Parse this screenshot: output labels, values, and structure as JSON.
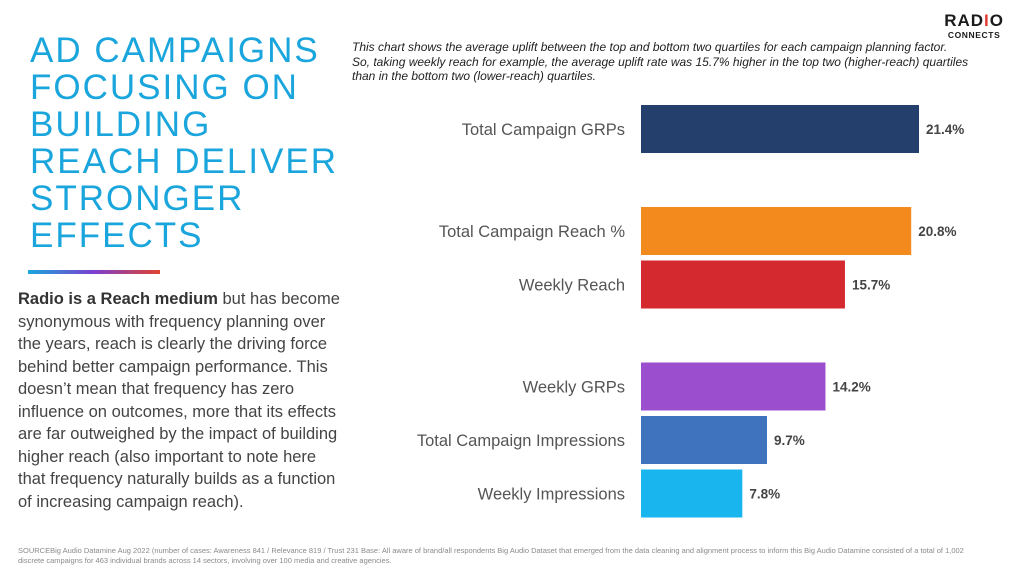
{
  "logo": {
    "line1_a": "RAD",
    "line1_b": "I",
    "line1_c": "O",
    "line2": "CONNECTS"
  },
  "headline": "AD CAMPAIGNS FOCUSING ON BUILDING REACH DELIVER STRONGER EFFECTS",
  "body": {
    "lead": "Radio is a Reach medium",
    "rest": " but has become synonymous with frequency planning over the years, reach is clearly the driving force behind better campaign performance. This doesn’t mean that frequency has zero influence on outcomes, more that its effects are far outweighed by the impact of building higher reach (also important to note here that frequency naturally builds as a function of increasing campaign reach)."
  },
  "note": {
    "line1": "This chart shows the average uplift between the top and bottom two quartiles for each campaign planning factor.",
    "line2": "So, taking weekly reach for example, the average uplift rate was 15.7% higher in the top two (higher-reach) quartiles than in the bottom two (lower-reach) quartiles."
  },
  "chart_data": {
    "type": "bar",
    "orientation": "horizontal",
    "categories": [
      "Total Campaign GRPs",
      "Total Campaign Reach %",
      "Weekly Reach",
      "Weekly GRPs",
      "Total Campaign Impressions",
      "Weekly Impressions"
    ],
    "values": [
      21.4,
      20.8,
      15.7,
      14.2,
      9.7,
      7.8
    ],
    "value_labels": [
      "21.4%",
      "20.8%",
      "15.7%",
      "14.2%",
      "9.7%",
      "7.8%"
    ],
    "colors": [
      "#243f6b",
      "#f28a1e",
      "#d42a2f",
      "#9b4fcf",
      "#3f73bd",
      "#19b5ef"
    ],
    "groups": [
      [
        0
      ],
      [
        1,
        2
      ],
      [
        3,
        4,
        5
      ]
    ],
    "title": "",
    "xlabel": "",
    "ylabel": "",
    "xlim": [
      0,
      21.4
    ],
    "grid": false,
    "legend": "none"
  },
  "footer": "SOURCEBig Audio Datamine Aug 2022  (number of cases: Awareness 841 / Relevance 819 / Trust 231 Base: All aware of brand/all respondents Big Audio Dataset that emerged from the data cleaning and alignment process to inform this Big Audio Datamine consisted of a total of 1,002 discrete campaigns for 463 individual brands across 14 sectors, involving over 100 media and creative agencies."
}
